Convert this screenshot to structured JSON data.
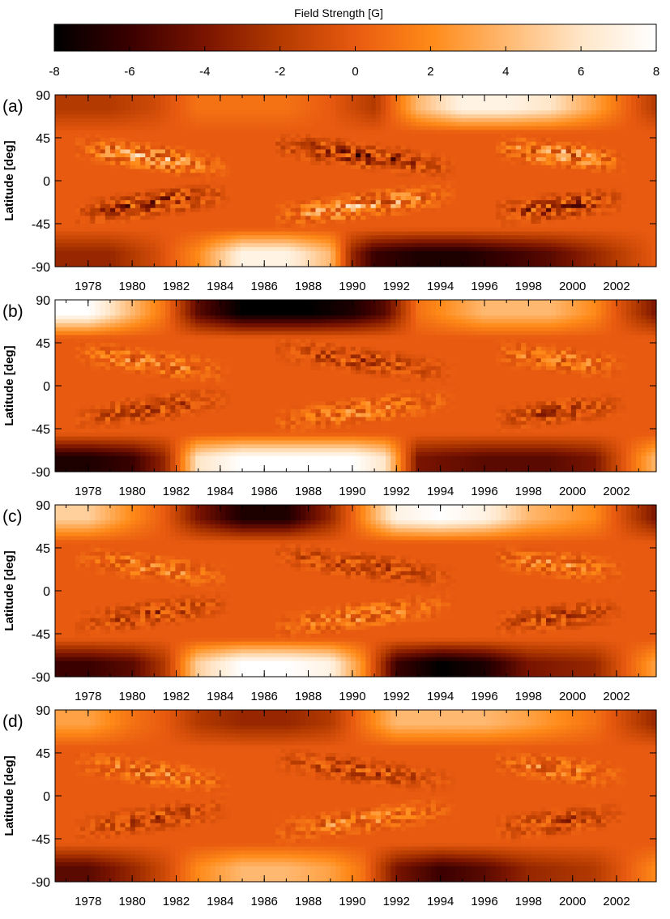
{
  "colorbar": {
    "title": "Field Strength [G]",
    "min": -8,
    "max": 8,
    "tick_labels": [
      "-8",
      "-6",
      "-4",
      "-2",
      "0",
      "2",
      "4",
      "6",
      "8"
    ],
    "colors": [
      "#000000",
      "#3a0000",
      "#7a1400",
      "#b33a00",
      "#e85a10",
      "#ff8a18",
      "#ffb870",
      "#ffe6c8",
      "#ffffff"
    ]
  },
  "chart_data": [
    {
      "type": "heatmap",
      "panel": "(a)",
      "ylabel": "Latitude [deg]",
      "ytick_labels": [
        "90",
        "45",
        "0",
        "-45",
        "-90"
      ],
      "ylim": [
        -90,
        90
      ],
      "xtick_labels": [
        "1978",
        "1980",
        "1982",
        "1984",
        "1986",
        "1988",
        "1990",
        "1992",
        "1994",
        "1996",
        "1998",
        "2000",
        "2002"
      ],
      "xlim": [
        1976.5,
        2003.8
      ],
      "north_polar_field": {
        "years": [
          1976.5,
          1979,
          1981,
          1983,
          1985,
          1987,
          1989,
          1990,
          1991,
          1993,
          1995,
          1997,
          1999,
          2001,
          2003.8
        ],
        "values": [
          -2,
          -2,
          -1,
          1,
          1,
          1,
          0,
          -1,
          -2,
          4,
          7,
          7,
          6,
          3,
          -2
        ]
      },
      "south_polar_field": {
        "years": [
          1976.5,
          1979,
          1981,
          1983,
          1985,
          1987,
          1989,
          1990,
          1991,
          1993,
          1995,
          1997,
          1999,
          2001,
          2003.8
        ],
        "values": [
          -3,
          -3,
          -1,
          2,
          7,
          7,
          4,
          -3,
          -6,
          -7,
          -7,
          -6,
          -5,
          -3,
          0
        ]
      },
      "activity_bands": [
        {
          "start": 1977.5,
          "end": 1986.0,
          "start_lat": 35,
          "end_lat": 8,
          "strength": 6
        },
        {
          "start": 1986.5,
          "end": 1996.5,
          "start_lat": 38,
          "end_lat": 8,
          "strength": 6
        },
        {
          "start": 1996.5,
          "end": 2003.8,
          "start_lat": 35,
          "end_lat": 16,
          "strength": 6
        }
      ]
    },
    {
      "type": "heatmap",
      "panel": "(b)",
      "ylabel": "Latitude [deg]",
      "ytick_labels": [
        "90",
        "45",
        "0",
        "-45",
        "-90"
      ],
      "ylim": [
        -90,
        90
      ],
      "xtick_labels": [
        "1978",
        "1980",
        "1982",
        "1984",
        "1986",
        "1988",
        "1990",
        "1992",
        "1994",
        "1996",
        "1998",
        "2000",
        "2002"
      ],
      "xlim": [
        1976.5,
        2003.8
      ],
      "north_polar_field": {
        "years": [
          1976.5,
          1978,
          1980,
          1981.5,
          1983,
          1985,
          1988,
          1990,
          1991.5,
          1993,
          1996,
          1999,
          2001,
          2003.8
        ],
        "values": [
          8,
          8,
          4,
          1,
          -5,
          -8,
          -8,
          -7,
          -5,
          1,
          4,
          4,
          2,
          -4
        ]
      },
      "south_polar_field": {
        "years": [
          1976.5,
          1978,
          1980,
          1981.5,
          1983,
          1985,
          1988,
          1990,
          1991.5,
          1993,
          1996,
          1999,
          2001,
          2003.8
        ],
        "values": [
          -7,
          -7,
          -6,
          -3,
          6,
          8,
          8,
          8,
          6,
          -4,
          -5,
          -5,
          -4,
          4
        ]
      },
      "activity_bands": [
        {
          "start": 1977.5,
          "end": 1986.0,
          "start_lat": 35,
          "end_lat": 8,
          "strength": 4
        },
        {
          "start": 1986.5,
          "end": 1996.5,
          "start_lat": 38,
          "end_lat": 8,
          "strength": 4
        },
        {
          "start": 1996.5,
          "end": 2003.8,
          "start_lat": 35,
          "end_lat": 16,
          "strength": 4
        }
      ]
    },
    {
      "type": "heatmap",
      "panel": "(c)",
      "ylabel": "Latitude [deg]",
      "ytick_labels": [
        "90",
        "45",
        "0",
        "-45",
        "-90"
      ],
      "ylim": [
        -90,
        90
      ],
      "xtick_labels": [
        "1978",
        "1980",
        "1982",
        "1984",
        "1986",
        "1988",
        "1990",
        "1992",
        "1994",
        "1996",
        "1998",
        "2000",
        "2002"
      ],
      "xlim": [
        1976.5,
        2003.8
      ],
      "north_polar_field": {
        "years": [
          1976.5,
          1978,
          1980,
          1981.5,
          1983,
          1985,
          1987,
          1989,
          1990.5,
          1992,
          1994,
          1996,
          1998,
          2001,
          2003.8
        ],
        "values": [
          5,
          5,
          2,
          0,
          -4,
          -7,
          -7,
          -3,
          2,
          7,
          8,
          7,
          4,
          2,
          -4
        ]
      },
      "south_polar_field": {
        "years": [
          1976.5,
          1978,
          1980,
          1981.5,
          1983,
          1985,
          1987,
          1989,
          1990.5,
          1992,
          1994,
          1996,
          1998,
          2001,
          2003.8
        ],
        "values": [
          -6,
          -6,
          -5,
          -2,
          5,
          8,
          8,
          7,
          2,
          -6,
          -8,
          -7,
          -4,
          -3,
          3
        ]
      },
      "activity_bands": [
        {
          "start": 1977.5,
          "end": 1986.0,
          "start_lat": 35,
          "end_lat": 8,
          "strength": 4
        },
        {
          "start": 1986.5,
          "end": 1996.5,
          "start_lat": 38,
          "end_lat": 8,
          "strength": 4
        },
        {
          "start": 1996.5,
          "end": 2003.8,
          "start_lat": 35,
          "end_lat": 16,
          "strength": 4
        }
      ]
    },
    {
      "type": "heatmap",
      "panel": "(d)",
      "ylabel": "Latitude [deg]",
      "ytick_labels": [
        "90",
        "45",
        "0",
        "-45",
        "-90"
      ],
      "ylim": [
        -90,
        90
      ],
      "xtick_labels": [
        "1978",
        "1980",
        "1982",
        "1984",
        "1986",
        "1988",
        "1990",
        "1992",
        "1994",
        "1996",
        "1998",
        "2000",
        "2002"
      ],
      "xlim": [
        1976.5,
        2003.8
      ],
      "north_polar_field": {
        "years": [
          1976.5,
          1978,
          1980,
          1981.5,
          1983,
          1985,
          1987,
          1989,
          1990.5,
          1992,
          1994,
          1996,
          1998,
          2001,
          2003.8
        ],
        "values": [
          3,
          3,
          1,
          0,
          -2,
          -3,
          -3,
          -2,
          1,
          4,
          4,
          4,
          3,
          1,
          -3
        ]
      },
      "south_polar_field": {
        "years": [
          1976.5,
          1978,
          1980,
          1981.5,
          1983,
          1985,
          1987,
          1989,
          1990.5,
          1992,
          1994,
          1996,
          1998,
          2001,
          2003.8
        ],
        "values": [
          -5,
          -5,
          -3,
          -1,
          2,
          4,
          4,
          3,
          1,
          -4,
          -6,
          -5,
          -3,
          -2,
          2
        ]
      },
      "activity_bands": [
        {
          "start": 1977.5,
          "end": 1986.0,
          "start_lat": 35,
          "end_lat": 8,
          "strength": 4
        },
        {
          "start": 1986.5,
          "end": 1996.5,
          "start_lat": 38,
          "end_lat": 8,
          "strength": 4
        },
        {
          "start": 1996.5,
          "end": 2003.8,
          "start_lat": 35,
          "end_lat": 16,
          "strength": 4
        }
      ]
    }
  ]
}
